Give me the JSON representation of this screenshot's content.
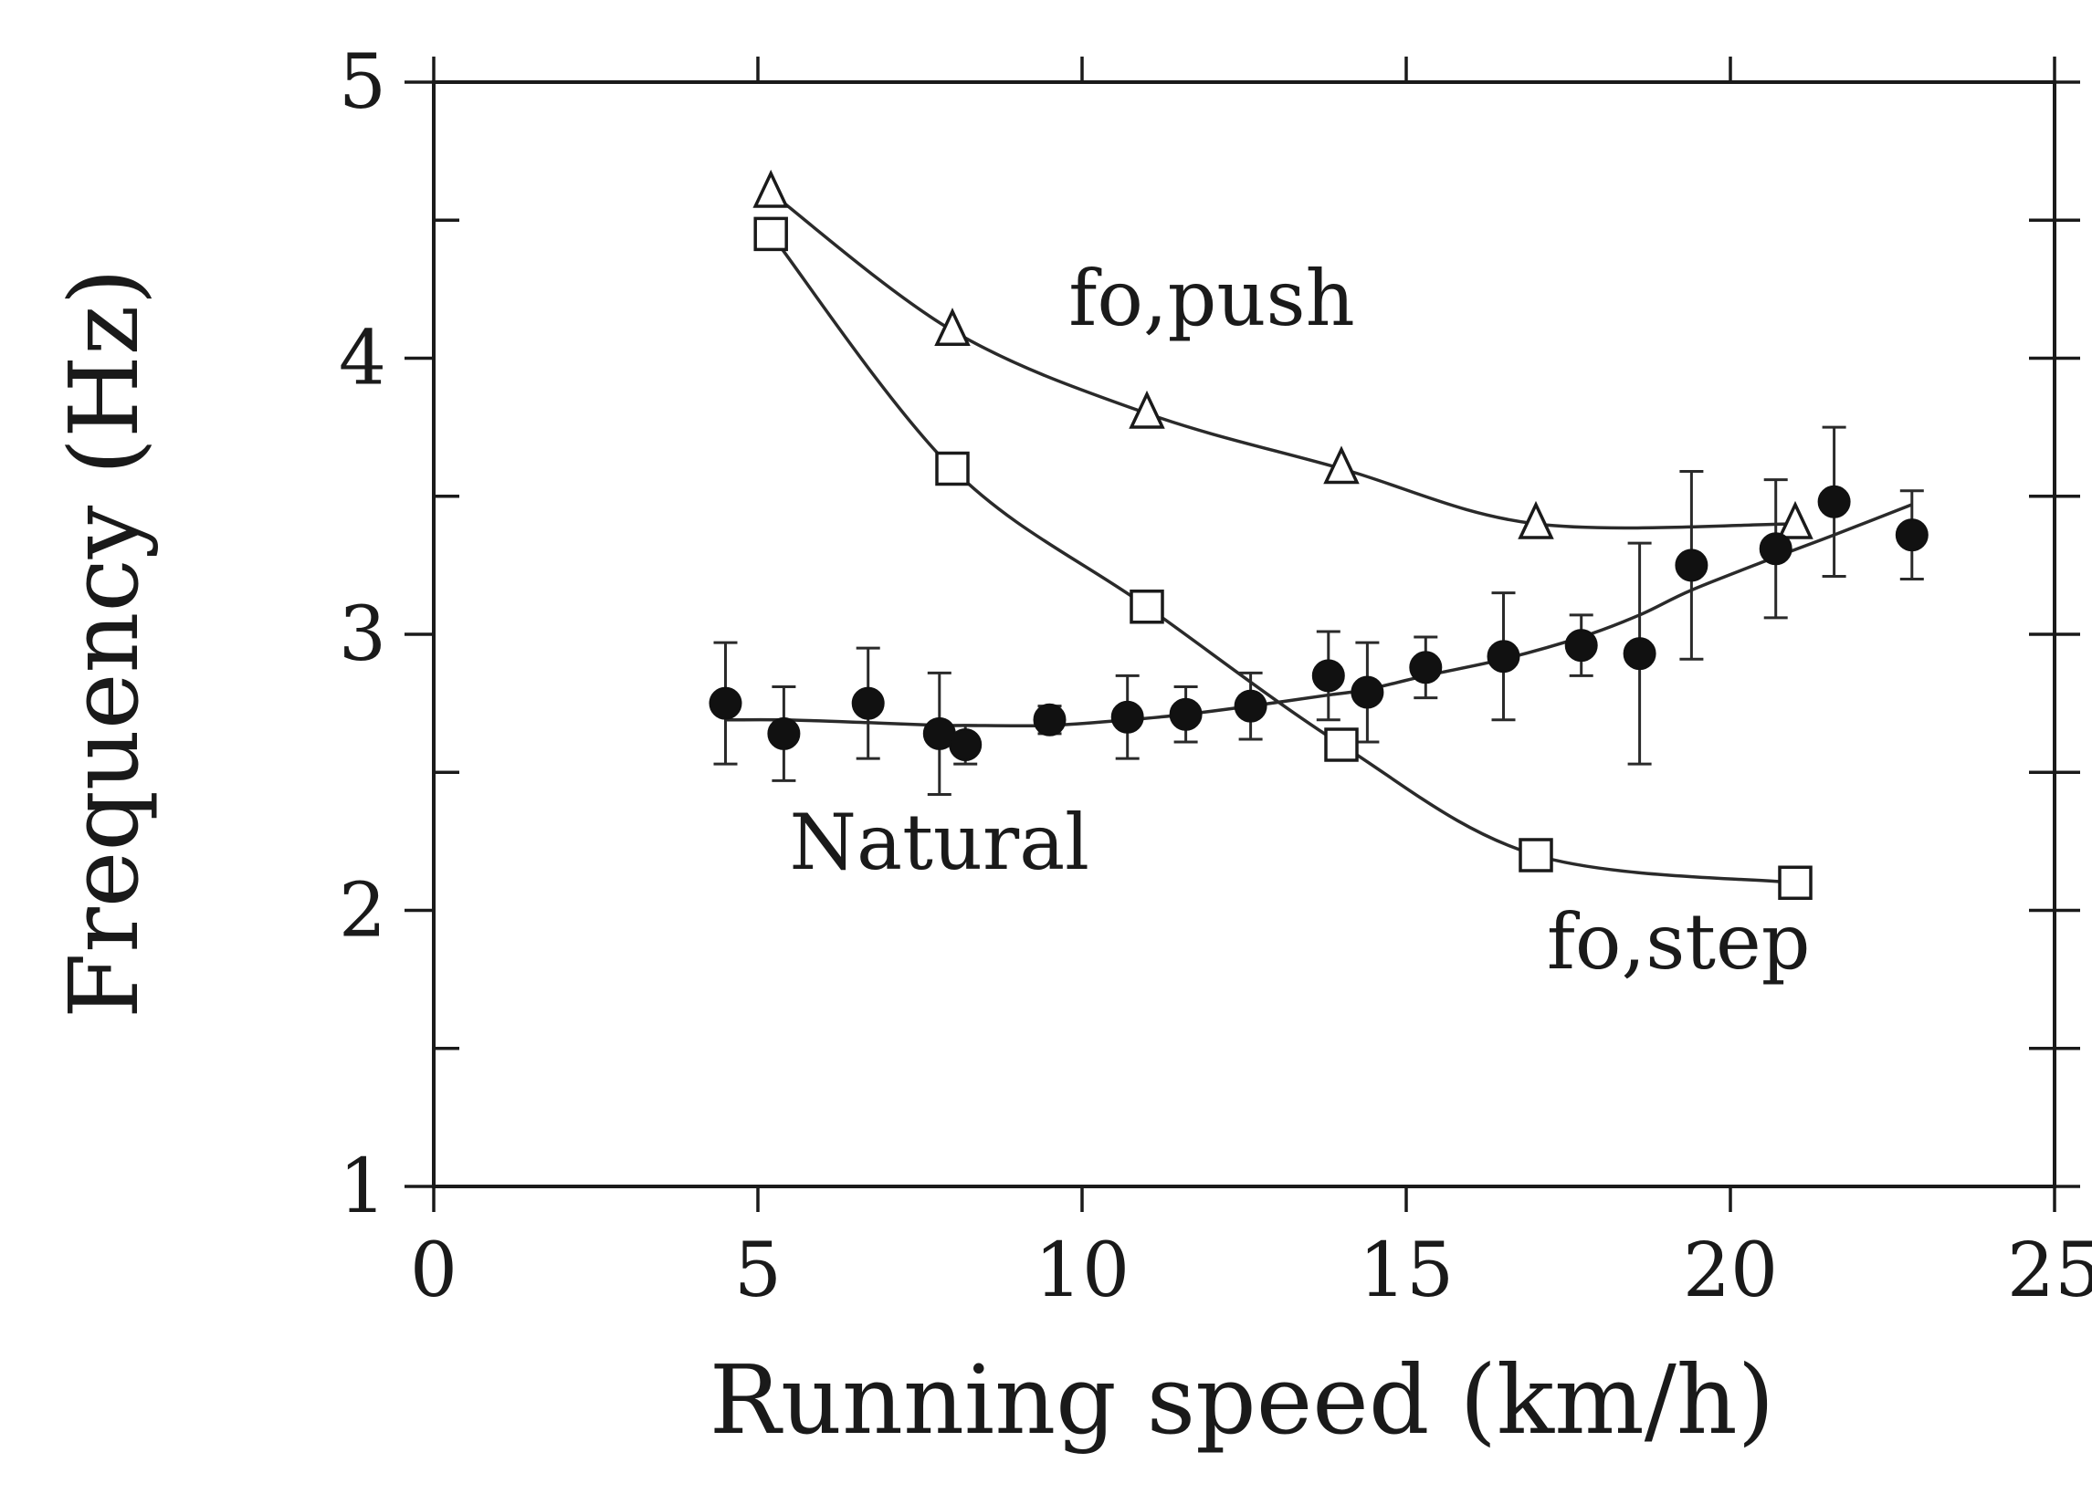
{
  "chart_data": {
    "type": "scatter",
    "title": "",
    "xlabel": "Running speed (km/h)",
    "ylabel": "Frequency (Hz)",
    "xlim": [
      0,
      25
    ],
    "ylim": [
      1,
      5
    ],
    "xticks": [
      "0",
      "5",
      "10",
      "15",
      "20",
      "25"
    ],
    "yticks": [
      "1",
      "2",
      "3",
      "4",
      "5"
    ],
    "xtick_values": [
      0,
      5,
      10,
      15,
      20,
      25
    ],
    "ytick_values": [
      1,
      2,
      3,
      4,
      5
    ],
    "grid": false,
    "series": [
      {
        "name": "fo,push",
        "marker": "open-triangle",
        "x": [
          5.2,
          8.0,
          11.0,
          14.0,
          17.0,
          21.0
        ],
        "y": [
          4.6,
          4.1,
          3.8,
          3.6,
          3.4,
          3.4
        ]
      },
      {
        "name": "fo,step",
        "marker": "open-square",
        "x": [
          5.2,
          8.0,
          11.0,
          14.0,
          17.0,
          21.0
        ],
        "y": [
          4.45,
          3.6,
          3.1,
          2.6,
          2.2,
          2.1
        ]
      },
      {
        "name": "Natural",
        "marker": "filled-circle",
        "x": [
          4.5,
          5.4,
          6.7,
          7.8,
          8.2,
          9.5,
          10.7,
          11.6,
          12.6,
          13.8,
          14.4,
          15.3,
          16.5,
          17.7,
          18.6,
          19.4,
          20.7,
          21.6,
          22.8
        ],
        "y": [
          2.75,
          2.64,
          2.75,
          2.64,
          2.6,
          2.69,
          2.7,
          2.71,
          2.74,
          2.85,
          2.79,
          2.88,
          2.92,
          2.96,
          2.93,
          3.25,
          3.31,
          3.48,
          3.36
        ],
        "error": [
          0.22,
          0.17,
          0.2,
          0.22,
          0.07,
          0.05,
          0.15,
          0.1,
          0.12,
          0.16,
          0.18,
          0.11,
          0.23,
          0.11,
          0.4,
          0.34,
          0.25,
          0.27,
          0.16
        ],
        "fit_y": [
          2.69,
          2.69,
          2.68,
          2.67,
          2.67,
          2.67,
          2.69,
          2.71,
          2.74,
          2.78,
          2.8,
          2.85,
          2.91,
          2.99,
          3.07,
          3.16,
          3.28,
          3.36,
          3.47
        ]
      }
    ],
    "annotations": [
      {
        "text": "fo,push",
        "x": 12.0,
        "y": 4.12
      },
      {
        "text": "Natural",
        "x": 7.8,
        "y": 2.15
      },
      {
        "text": "fo,step",
        "x": 19.2,
        "y": 1.79
      }
    ]
  }
}
